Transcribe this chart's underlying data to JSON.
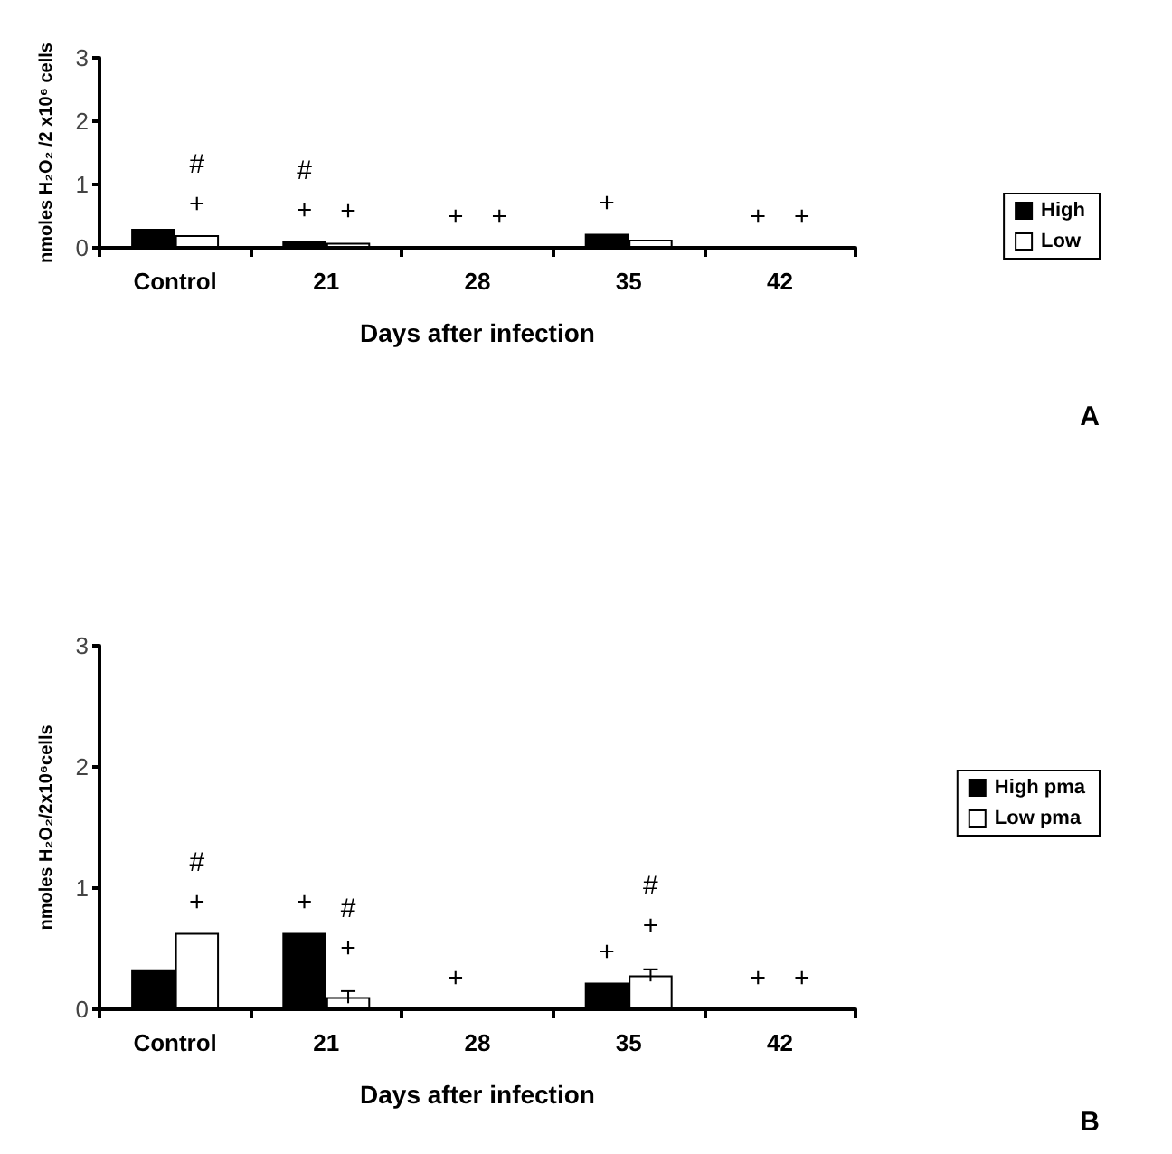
{
  "chart_data": [
    {
      "type": "bar",
      "xlabel": "Days after infection",
      "ylabel": "nmoles H₂O₂ /2 x10⁶ cells",
      "categories": [
        "Control",
        "21",
        "28",
        "35",
        "42"
      ],
      "series": [
        {
          "name": "High",
          "color": "#000000",
          "values": [
            0.3,
            0.1,
            0,
            0.22,
            0
          ],
          "value_labels": [
            null,
            "#\n+",
            "+",
            "+",
            "+"
          ]
        },
        {
          "name": "Low",
          "color": "#ffffff",
          "values": [
            0.2,
            0.08,
            0,
            0.13,
            0
          ],
          "value_labels": [
            "#\n+",
            "+",
            "+",
            null,
            "+"
          ]
        }
      ],
      "ylim": [
        0,
        3
      ],
      "yticks": [
        0,
        1,
        2,
        3
      ],
      "grid": false,
      "legend": "right",
      "annotations": [
        "A"
      ]
    },
    {
      "type": "bar",
      "xlabel": "Days after infection",
      "ylabel": "nmoles H₂O₂/2x10⁶cells",
      "categories": [
        "Control",
        "21",
        "28",
        "35",
        "42"
      ],
      "series": [
        {
          "name": "High pma",
          "color": "#000000",
          "values": [
            0.33,
            0.63,
            0,
            0.22,
            0
          ],
          "value_labels": [
            null,
            "+",
            "+",
            "+",
            "+"
          ]
        },
        {
          "name": "Low pma",
          "color": "#ffffff",
          "values": [
            0.63,
            0.1,
            0,
            0.28,
            0
          ],
          "errors": [
            null,
            0.05,
            null,
            0.05,
            null
          ],
          "value_labels": [
            "#\n+",
            "#\n+",
            null,
            "#\n+",
            "+"
          ]
        }
      ],
      "ylim": [
        0,
        3
      ],
      "yticks": [
        0,
        1,
        2,
        3
      ],
      "grid": false,
      "legend": "right",
      "annotations": [
        "B"
      ]
    }
  ]
}
